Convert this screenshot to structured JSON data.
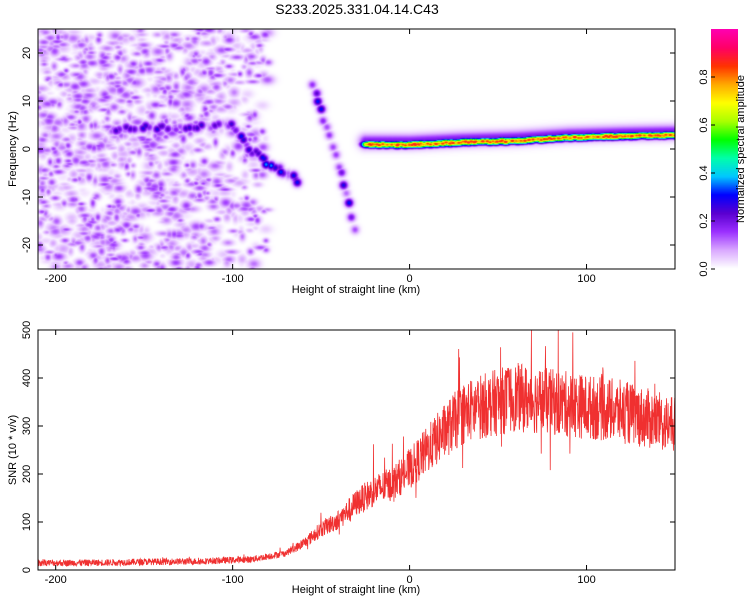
{
  "title": "S233.2025.331.04.14.C43",
  "chart_data": [
    {
      "type": "heatmap",
      "xlabel": "Height of straight line (km)",
      "ylabel": "Frequency (Hz)",
      "xlim": [
        -210,
        150
      ],
      "ylim": [
        -25,
        25
      ],
      "xticks": [
        -200,
        -100,
        0,
        100
      ],
      "yticks": [
        -20,
        -10,
        0,
        10,
        20
      ],
      "colorbar": {
        "label": "Normalized spectral amplitude",
        "range": [
          0,
          1
        ],
        "ticks": [
          "0.0",
          "0.2",
          "0.4",
          "0.6",
          "0.8"
        ],
        "tick_values": [
          0.0,
          0.2,
          0.4,
          0.6,
          0.8
        ],
        "colors": [
          "#ffffff",
          "#d9a8ff",
          "#9b30ff",
          "#5a00d0",
          "#0000ff",
          "#00c8ff",
          "#00ffaa",
          "#00ff00",
          "#aaff00",
          "#ffff00",
          "#ffaa00",
          "#ff3300",
          "#ff0066",
          "#ff00b0"
        ]
      },
      "features": [
        {
          "name": "noise-region",
          "x_range": [
            -210,
            -80
          ],
          "y_range": [
            -25,
            25
          ],
          "amplitude": 0.15
        },
        {
          "name": "ridge-1",
          "points": [
            [
              -170,
              4
            ],
            [
              -150,
              4.5
            ],
            [
              -130,
              4.5
            ],
            [
              -110,
              5
            ],
            [
              -100,
              5
            ]
          ],
          "amplitude": 0.22
        },
        {
          "name": "descending-track-1",
          "points": [
            [
              -100,
              5
            ],
            [
              -90,
              0
            ],
            [
              -80,
              -3
            ],
            [
              -70,
              -5
            ],
            [
              -62,
              -7
            ]
          ],
          "amplitude": 0.3
        },
        {
          "name": "descending-track-2",
          "points": [
            [
              -55,
              13
            ],
            [
              -50,
              8
            ],
            [
              -45,
              2
            ],
            [
              -40,
              -4
            ],
            [
              -35,
              -10
            ],
            [
              -30,
              -18
            ]
          ],
          "amplitude": 0.25
        },
        {
          "name": "flat-strong-track",
          "points": [
            [
              -25,
              1
            ],
            [
              0,
              1
            ],
            [
              30,
              1.5
            ],
            [
              60,
              1.8
            ],
            [
              90,
              2.5
            ],
            [
              120,
              2.8
            ],
            [
              150,
              3
            ]
          ],
          "amplitude": 0.9
        }
      ]
    },
    {
      "type": "line",
      "xlabel": "Height of straight line (km)",
      "ylabel": "SNR (10 * v/v)",
      "xlim": [
        -210,
        150
      ],
      "ylim": [
        0,
        500
      ],
      "xticks": [
        -200,
        -100,
        0,
        100
      ],
      "yticks": [
        0,
        100,
        200,
        300,
        400,
        500
      ],
      "color": "#f03030",
      "series": [
        {
          "name": "SNR",
          "x": [
            -210,
            -180,
            -150,
            -120,
            -90,
            -70,
            -60,
            -50,
            -40,
            -30,
            -20,
            -10,
            0,
            10,
            20,
            30,
            40,
            50,
            60,
            70,
            80,
            90,
            100,
            110,
            120,
            130,
            140,
            150
          ],
          "values": [
            15,
            15,
            17,
            18,
            22,
            35,
            55,
            85,
            105,
            140,
            165,
            180,
            210,
            250,
            290,
            325,
            340,
            350,
            360,
            355,
            350,
            345,
            340,
            335,
            330,
            320,
            310,
            300
          ]
        }
      ]
    }
  ]
}
